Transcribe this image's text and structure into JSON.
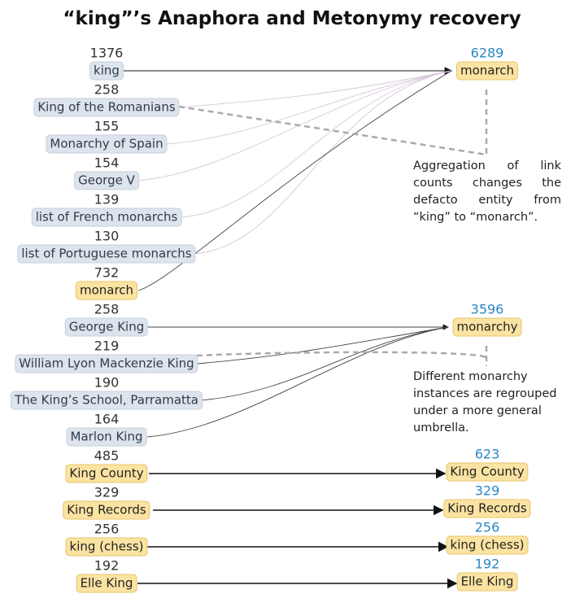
{
  "title": "“king”’s Anaphora and Metonymy recovery",
  "left_nodes": [
    {
      "count": "1376",
      "label": "king",
      "kind": "grey"
    },
    {
      "count": "258",
      "label": "King of the Romanians",
      "kind": "grey"
    },
    {
      "count": "155",
      "label": "Monarchy of Spain",
      "kind": "grey"
    },
    {
      "count": "154",
      "label": "George V",
      "kind": "grey"
    },
    {
      "count": "139",
      "label": "list of French monarchs",
      "kind": "grey"
    },
    {
      "count": "130",
      "label": "list of Portuguese monarchs",
      "kind": "grey"
    },
    {
      "count": "732",
      "label": "monarch",
      "kind": "yellow"
    },
    {
      "count": "258",
      "label": "George King",
      "kind": "grey"
    },
    {
      "count": "219",
      "label": "William Lyon Mackenzie King",
      "kind": "grey"
    },
    {
      "count": "190",
      "label": "The King’s School, Parramatta",
      "kind": "grey"
    },
    {
      "count": "164",
      "label": "Marlon King",
      "kind": "grey"
    },
    {
      "count": "485",
      "label": "King County",
      "kind": "yellow"
    },
    {
      "count": "329",
      "label": "King Records",
      "kind": "yellow"
    },
    {
      "count": "256",
      "label": "king (chess)",
      "kind": "yellow"
    },
    {
      "count": "192",
      "label": "Elle King",
      "kind": "yellow"
    }
  ],
  "right_nodes": [
    {
      "count": "6289",
      "label": "monarch"
    },
    {
      "count": "3596",
      "label": "monarchy"
    },
    {
      "count": "623",
      "label": "King County"
    },
    {
      "count": "329",
      "label": "King Records"
    },
    {
      "count": "256",
      "label": "king (chess)"
    },
    {
      "count": "192",
      "label": "Elle King"
    }
  ],
  "notes": [
    "Aggregation of link counts changes the defacto entity from “king” to “monarch”.",
    "Different monarchy instances are regrouped under a more general umbrella."
  ],
  "colors": {
    "count_blue": "#2a86c8",
    "node_grey": "#dde4ec",
    "node_yellow": "#fbe3a2",
    "edge_light": "#d9c6dc"
  }
}
